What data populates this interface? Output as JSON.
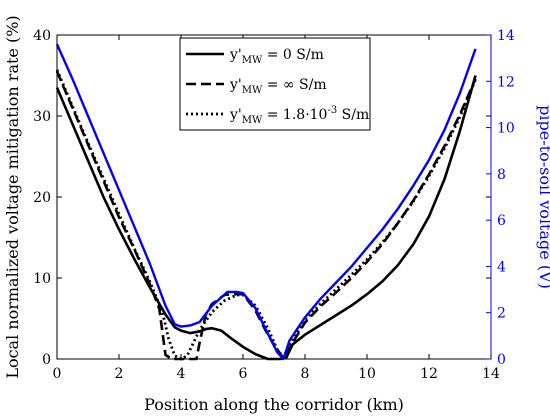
{
  "chart_data": {
    "type": "line",
    "xlabel": "Position along the corridor (km)",
    "ylabel_left": "Local normalized voltage mitigation rate (%)",
    "ylabel_right": "pipe-to-soil voltage (V)",
    "xlim": [
      0,
      14
    ],
    "ylim_left": [
      0,
      40
    ],
    "ylim_right": [
      0,
      14
    ],
    "xticks": [
      "0",
      "2",
      "4",
      "6",
      "8",
      "10",
      "12",
      "14"
    ],
    "yticks_left": [
      "0",
      "10",
      "20",
      "30",
      "40"
    ],
    "yticks_right": [
      "0",
      "2",
      "4",
      "6",
      "8",
      "10",
      "12",
      "14"
    ],
    "grid": false,
    "legend_position": "top-center",
    "colors": {
      "left_axis": "#000000",
      "right_axis": "#0000ff",
      "voltage": "#0000ff"
    },
    "series": [
      {
        "legend": {
          "prefix": "y'",
          "sub": "MW",
          "suffix": " = 0 S/m"
        },
        "style": "solid",
        "color": "#000000",
        "axis": "left",
        "x": [
          0,
          0.5,
          1,
          1.5,
          2,
          2.5,
          3,
          3.5,
          3.8,
          4,
          4.3,
          4.6,
          4.8,
          5,
          5.3,
          5.6,
          6,
          6.4,
          6.8,
          7,
          7.2,
          7.4,
          7.6,
          8,
          8.5,
          9,
          9.5,
          10,
          10.5,
          11,
          11.5,
          12,
          12.5,
          13,
          13.5
        ],
        "y": [
          33.5,
          29,
          24.5,
          20,
          16,
          12.3,
          8.8,
          5.5,
          3.9,
          3.5,
          3.2,
          3.4,
          3.7,
          3.8,
          3.5,
          2.6,
          1.5,
          0.6,
          0.0,
          0.0,
          0.0,
          0.2,
          1.8,
          3.0,
          4.2,
          5.4,
          6.6,
          8.0,
          9.6,
          11.6,
          14.2,
          17.6,
          22.2,
          28.2,
          35.0
        ]
      },
      {
        "legend": {
          "prefix": "y'",
          "sub": "MW",
          "suffix": " = ∞ S/m"
        },
        "style": "dashed",
        "color": "#000000",
        "axis": "left",
        "x": [
          0,
          0.5,
          1,
          1.5,
          2,
          2.5,
          3,
          3.3,
          3.5,
          3.7,
          3.9,
          4.1,
          4.3,
          4.5,
          4.6,
          4.8,
          5,
          5.4,
          5.6,
          6,
          6.4,
          6.8,
          7.1,
          7.3,
          7.6,
          8,
          8.5,
          9,
          9.5,
          10,
          10.5,
          11,
          11.5,
          12,
          12.5,
          13,
          13.5
        ],
        "y": [
          35.5,
          31,
          26.5,
          22,
          17.5,
          13.5,
          9.2,
          6.2,
          0.5,
          0.0,
          0.0,
          0.0,
          0.0,
          0.0,
          2.0,
          5.5,
          6.8,
          7.9,
          8.0,
          8.0,
          6.0,
          3.0,
          1.2,
          0.1,
          2.0,
          4.5,
          6.5,
          8.2,
          10.0,
          12.0,
          14.2,
          16.8,
          19.6,
          22.8,
          26.3,
          30.2,
          34.6
        ]
      },
      {
        "legend": {
          "prefix": "y'",
          "sub": "MW",
          "suffix": " = 1.8·10",
          "sup": "-3",
          "suffix2": " S/m"
        },
        "style": "dotted",
        "color": "#000000",
        "axis": "left",
        "x": [
          0,
          0.5,
          1,
          1.5,
          2,
          2.5,
          3,
          3.4,
          3.6,
          3.8,
          4,
          4.2,
          4.4,
          4.6,
          4.8,
          5,
          5.4,
          5.8,
          6,
          6.4,
          6.8,
          7.1,
          7.3,
          7.6,
          8,
          8.5,
          9,
          9.5,
          10,
          10.5,
          11,
          11.5,
          12,
          12.5,
          13,
          13.5
        ],
        "y": [
          35.7,
          31.2,
          26.7,
          22.3,
          17.9,
          13.6,
          9.5,
          5.8,
          2.5,
          0.4,
          0.0,
          0.4,
          2.0,
          3.6,
          4.7,
          5.8,
          7.2,
          7.9,
          7.9,
          6.6,
          3.8,
          1.2,
          0.2,
          2.3,
          4.8,
          6.8,
          8.6,
          10.4,
          12.3,
          14.4,
          16.8,
          19.5,
          22.6,
          26.0,
          29.9,
          34.5
        ]
      },
      {
        "legend": null,
        "style": "solid",
        "color": "#0000ff",
        "axis": "right",
        "x": [
          0,
          0.5,
          1,
          1.5,
          2,
          2.5,
          3,
          3.5,
          3.8,
          4,
          4.3,
          4.6,
          5,
          5.5,
          5.8,
          6,
          6.4,
          6.8,
          7.1,
          7.3,
          7.5,
          8,
          8.5,
          9,
          9.5,
          10,
          10.5,
          11,
          11.5,
          12,
          12.5,
          13,
          13.5
        ],
        "y": [
          13.6,
          12.1,
          10.5,
          8.9,
          7.3,
          5.7,
          4.1,
          2.3,
          1.5,
          1.4,
          1.45,
          1.6,
          2.3,
          2.9,
          2.9,
          2.85,
          2.2,
          1.1,
          0.3,
          0.0,
          0.8,
          1.8,
          2.6,
          3.3,
          4.0,
          4.8,
          5.6,
          6.5,
          7.5,
          8.6,
          9.9,
          11.5,
          13.4
        ]
      }
    ]
  }
}
